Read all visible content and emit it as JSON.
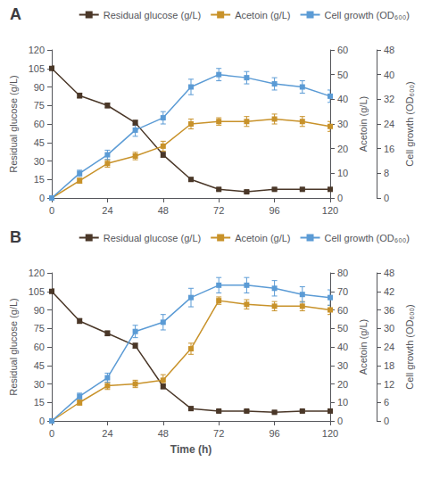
{
  "chart_data": [
    {
      "type": "line",
      "title": "A",
      "x": [
        0,
        12,
        24,
        36,
        48,
        60,
        72,
        84,
        96,
        108,
        120
      ],
      "xlim": [
        0,
        120
      ],
      "xticks": [
        0,
        24,
        48,
        72,
        96,
        120
      ],
      "ylabel": "Residual glucose (g/L)",
      "y2label": "Acetoin (g/L)",
      "y3label": "Cell growth (OD₆₀₀)",
      "ylim": [
        0,
        120
      ],
      "yticks": [
        0,
        15,
        30,
        45,
        60,
        75,
        90,
        105,
        120
      ],
      "y2lim": [
        0,
        60
      ],
      "y2ticks": [
        0,
        10,
        20,
        30,
        40,
        50,
        60
      ],
      "y3lim": [
        0,
        48
      ],
      "y3ticks": [
        0,
        8,
        16,
        24,
        32,
        40,
        48
      ],
      "grid": false,
      "legend": "upper right",
      "marker": "square",
      "series": [
        {
          "name": "Residual glucose (g/L)",
          "color": "#4a3728",
          "values": [
            105,
            83,
            75,
            61,
            35,
            15,
            7,
            5,
            7,
            7,
            7
          ],
          "errors": [
            2,
            2,
            2,
            2,
            2,
            1.5,
            1,
            1,
            1,
            1,
            1
          ]
        },
        {
          "name": "Acetoin (g/L)",
          "color": "#c8922a",
          "axis": "y2",
          "values": [
            0,
            7,
            14,
            17,
            21,
            30,
            31,
            31,
            32,
            31,
            29
          ],
          "errors": [
            0,
            1,
            1.5,
            1.5,
            2,
            2,
            1.5,
            2,
            2,
            2,
            2
          ]
        },
        {
          "name": "Cell growth (OD₆₀₀)",
          "color": "#5b9bd5",
          "axis": "y3",
          "values": [
            0,
            8,
            14,
            22,
            26,
            36,
            40,
            39,
            37,
            36,
            33
          ],
          "errors": [
            0,
            1,
            1.5,
            2,
            2,
            2.5,
            2,
            2,
            2,
            2,
            2
          ]
        }
      ]
    },
    {
      "type": "line",
      "title": "B",
      "x": [
        0,
        12,
        24,
        36,
        48,
        60,
        72,
        84,
        96,
        108,
        120
      ],
      "xlim": [
        0,
        120
      ],
      "xticks": [
        0,
        24,
        48,
        72,
        96,
        120
      ],
      "xlabel": "Time (h)",
      "ylabel": "Residual glucose (g/L)",
      "y2label": "Acetoin (g/L)",
      "y3label": "Cell growth (OD₆₀₀)",
      "ylim": [
        0,
        120
      ],
      "yticks": [
        0,
        15,
        30,
        45,
        60,
        75,
        90,
        105,
        120
      ],
      "y2lim": [
        0,
        80
      ],
      "y2ticks": [
        0,
        10,
        20,
        30,
        40,
        50,
        60,
        70,
        80
      ],
      "y3lim": [
        0,
        48
      ],
      "y3ticks": [
        0,
        6,
        12,
        18,
        24,
        30,
        36,
        42,
        48
      ],
      "grid": false,
      "legend": "upper right",
      "marker": "square",
      "series": [
        {
          "name": "Residual glucose (g/L)",
          "color": "#4a3728",
          "values": [
            105,
            81,
            71,
            61,
            28,
            10,
            8,
            8,
            7,
            8,
            8
          ],
          "errors": [
            2,
            2,
            2,
            2,
            2,
            1.5,
            1,
            1,
            1,
            1,
            1
          ]
        },
        {
          "name": "Acetoin (g/L)",
          "color": "#c8922a",
          "axis": "y2",
          "values": [
            0,
            10,
            19,
            20,
            22,
            39,
            65,
            63,
            62,
            62,
            60
          ],
          "errors": [
            0,
            1.5,
            2,
            2,
            3,
            3,
            2,
            2.5,
            2.5,
            2.5,
            2.5
          ]
        },
        {
          "name": "Cell growth (OD₆₀₀)",
          "color": "#5b9bd5",
          "axis": "y3",
          "values": [
            0,
            8,
            14,
            29,
            32,
            40,
            44,
            44,
            43,
            41,
            40
          ],
          "errors": [
            0,
            1,
            1.5,
            2,
            2.5,
            3,
            2.5,
            2.5,
            2.5,
            2.5,
            2.5
          ]
        }
      ]
    }
  ]
}
